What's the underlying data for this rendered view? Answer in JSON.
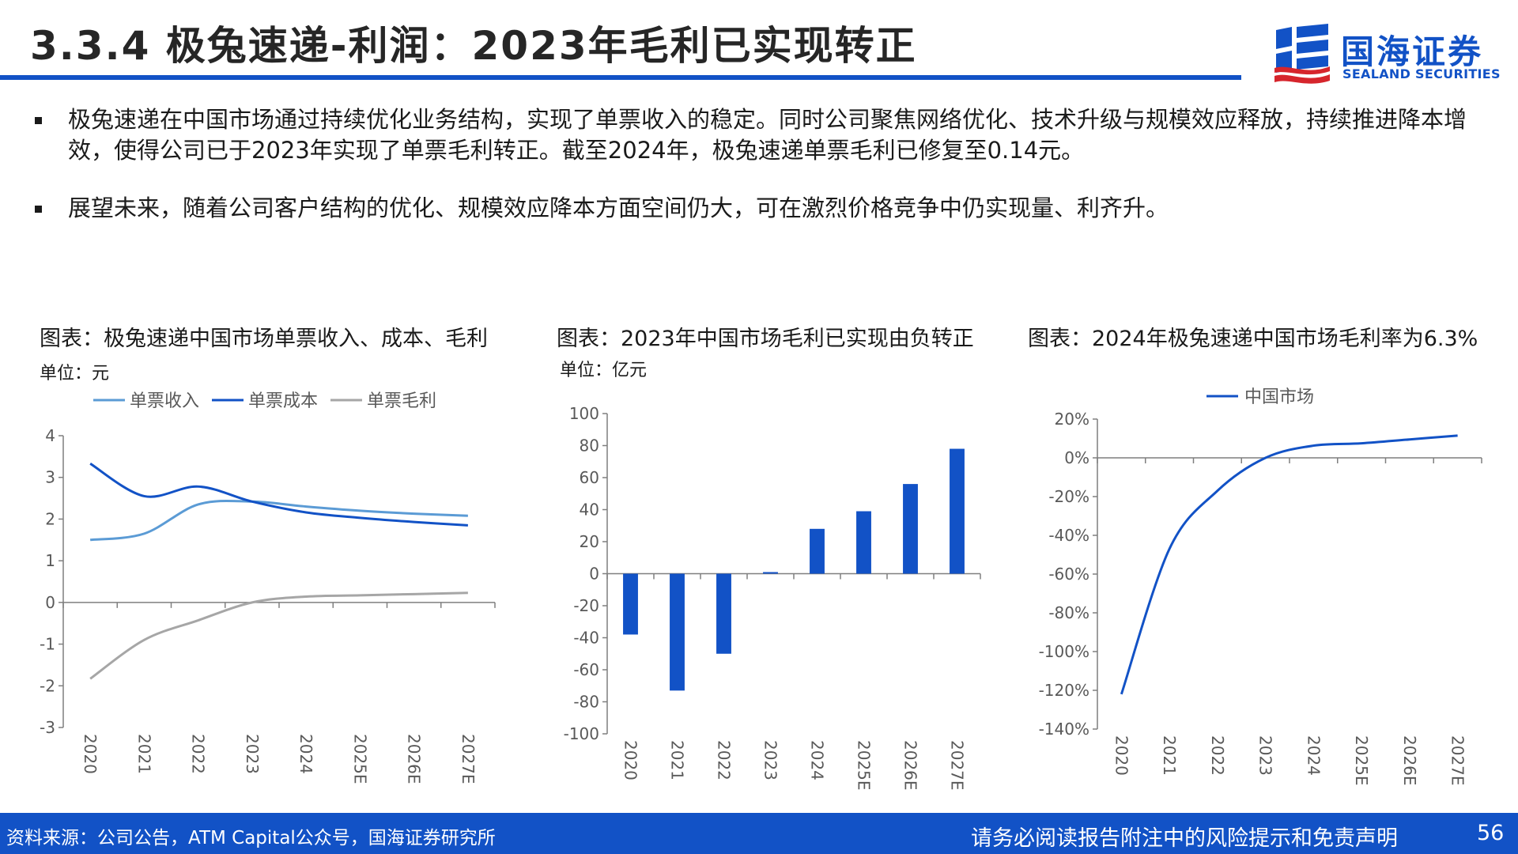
{
  "page": {
    "title": "3.3.4 极兔速递-利润：2023年毛利已实现转正",
    "brand": {
      "cn": "国海证券",
      "en": "SEALAND SECURITIES",
      "color": "#1252c6"
    },
    "bullets": [
      "极兔速递在中国市场通过持续优化业务结构，实现了单票收入的稳定。同时公司聚焦网络优化、技术升级与规模效应释放，持续推进降本增效，使得公司已于2023年实现了单票毛利转正。截至2024年，极兔速递单票毛利已修复至0.14元。",
      "展望未来，随着公司客户结构的优化、规模效应降本方面空间仍大，可在激烈价格竞争中仍实现量、利齐升。"
    ],
    "footer": {
      "source": "资料来源：公司公告，ATM Capital公众号，国海证券研究所",
      "disclaimer": "请务必阅读报告附注中的风险提示和免责声明",
      "page_number": "56"
    }
  },
  "chart_data": [
    {
      "type": "line",
      "title": "图表：极兔速递中国市场单票收入、成本、毛利",
      "unit": "单位：元",
      "categories": [
        "2020",
        "2021",
        "2022",
        "2023",
        "2024",
        "2025E",
        "2026E",
        "2027E"
      ],
      "series": [
        {
          "name": "单票收入",
          "color": "#5b9bd5",
          "values": [
            1.5,
            1.65,
            2.35,
            2.42,
            2.3,
            2.2,
            2.13,
            2.08
          ]
        },
        {
          "name": "单票成本",
          "color": "#1252c6",
          "values": [
            3.33,
            2.55,
            2.78,
            2.42,
            2.16,
            2.03,
            1.93,
            1.85
          ]
        },
        {
          "name": "单票毛利",
          "color": "#a6a6a6",
          "values": [
            -1.83,
            -0.9,
            -0.43,
            0.0,
            0.14,
            0.17,
            0.2,
            0.23
          ]
        }
      ],
      "ylim": [
        -3,
        4
      ],
      "yticks": [
        "4",
        "3",
        "2",
        "1",
        "0",
        "-1",
        "-2",
        "-3"
      ],
      "legend": "top"
    },
    {
      "type": "bar",
      "title": "图表：2023年中国市场毛利已实现由负转正",
      "unit": "单位：亿元",
      "categories": [
        "2020",
        "2021",
        "2022",
        "2023",
        "2024",
        "2025E",
        "2026E",
        "2027E"
      ],
      "values": [
        -38,
        -73,
        -50,
        1,
        28,
        39,
        56,
        78
      ],
      "color": "#1252c6",
      "ylim": [
        -100,
        100
      ],
      "yticks": [
        "100",
        "80",
        "60",
        "40",
        "20",
        "0",
        "-20",
        "-40",
        "-60",
        "-80",
        "-100"
      ]
    },
    {
      "type": "line",
      "title": "图表：2024年极兔速递中国市场毛利率为6.3%",
      "categories": [
        "2020",
        "2021",
        "2022",
        "2023",
        "2024",
        "2025E",
        "2026E",
        "2027E"
      ],
      "series": [
        {
          "name": "中国市场",
          "color": "#1252c6",
          "values": [
            -122,
            -47,
            -17,
            0,
            6.3,
            7.5,
            9.5,
            11.5
          ]
        }
      ],
      "ylim": [
        -140,
        20
      ],
      "yticks": [
        "20%",
        "0%",
        "-20%",
        "-40%",
        "-60%",
        "-80%",
        "-100%",
        "-120%",
        "-140%"
      ],
      "legend": "top"
    }
  ]
}
